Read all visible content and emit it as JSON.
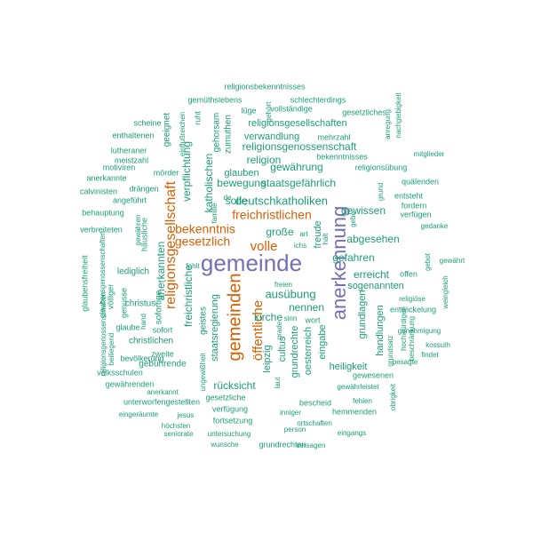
{
  "colors": {
    "teal": "#1b9e77",
    "orange": "#d95f02",
    "purple": "#7570b3"
  },
  "words": [
    {
      "text": "gemeinde",
      "weight": 1.0,
      "color": "purple"
    },
    {
      "text": "anerkennung",
      "weight": 1.0,
      "color": "purple"
    },
    {
      "text": "gemeinden",
      "weight": 0.7,
      "color": "orange"
    },
    {
      "text": "öffentliche",
      "weight": 0.55,
      "color": "orange"
    },
    {
      "text": "religionsgesellschaft",
      "weight": 0.55,
      "color": "orange"
    },
    {
      "text": "freichristlichen",
      "weight": 0.55,
      "color": "orange"
    },
    {
      "text": "bekenntnis",
      "weight": 0.5,
      "color": "orange"
    },
    {
      "text": "gesetzlich",
      "weight": 0.5,
      "color": "orange"
    },
    {
      "text": "volle",
      "weight": 0.5,
      "color": "orange"
    },
    {
      "text": "deutschkatholiken",
      "weight": 0.4,
      "color": "teal"
    },
    {
      "text": "ausübung",
      "weight": 0.4,
      "color": "teal"
    },
    {
      "text": "religionsgenossenschaft",
      "weight": 0.35,
      "color": "teal"
    },
    {
      "text": "staatsgefährlich",
      "weight": 0.3,
      "color": "teal"
    },
    {
      "text": "religionsgesellschaften",
      "weight": 0.3,
      "color": "teal"
    },
    {
      "text": "gewährung",
      "weight": 0.3,
      "color": "teal"
    },
    {
      "text": "bewegung",
      "weight": 0.3,
      "color": "teal"
    },
    {
      "text": "religion",
      "weight": 0.3,
      "color": "teal"
    },
    {
      "text": "gewissen",
      "weight": 0.3,
      "color": "teal"
    },
    {
      "text": "abgesehen",
      "weight": 0.3,
      "color": "teal"
    },
    {
      "text": "gefahren",
      "weight": 0.3,
      "color": "teal"
    },
    {
      "text": "erreicht",
      "weight": 0.3,
      "color": "teal"
    },
    {
      "text": "nennen",
      "weight": 0.3,
      "color": "teal"
    },
    {
      "text": "kirche",
      "weight": 0.3,
      "color": "teal"
    },
    {
      "text": "freichristliche",
      "weight": 0.3,
      "color": "teal"
    },
    {
      "text": "anerkannten",
      "weight": 0.3,
      "color": "teal"
    },
    {
      "text": "katholischen",
      "weight": 0.25,
      "color": "teal"
    },
    {
      "text": "verpflichtung",
      "weight": 0.25,
      "color": "teal"
    },
    {
      "text": "rücksicht",
      "weight": 0.25,
      "color": "teal"
    },
    {
      "text": "solle",
      "weight": 0.25,
      "color": "teal"
    },
    {
      "text": "große",
      "weight": 0.25,
      "color": "teal"
    },
    {
      "text": "glauben",
      "weight": 0.25,
      "color": "teal"
    },
    {
      "text": "verwandlung",
      "weight": 0.25,
      "color": "teal"
    },
    {
      "text": "staatsregierung",
      "weight": 0.25,
      "color": "teal"
    },
    {
      "text": "leipzig",
      "weight": 0.25,
      "color": "teal"
    },
    {
      "text": "cultus",
      "weight": 0.25,
      "color": "teal"
    },
    {
      "text": "grundrechte",
      "weight": 0.25,
      "color": "teal"
    },
    {
      "text": "eingabe",
      "weight": 0.25,
      "color": "teal"
    },
    {
      "text": "oesterreich",
      "weight": 0.25,
      "color": "teal"
    },
    {
      "text": "sogenannten",
      "weight": 0.25,
      "color": "teal"
    },
    {
      "text": "grundlagen",
      "weight": 0.25,
      "color": "teal"
    },
    {
      "text": "handlungen",
      "weight": 0.25,
      "color": "teal"
    },
    {
      "text": "heiligkeit",
      "weight": 0.25,
      "color": "teal"
    },
    {
      "text": "christlichen",
      "weight": 0.25,
      "color": "teal"
    },
    {
      "text": "freude",
      "weight": 0.25,
      "color": "teal"
    },
    {
      "text": "lediglich",
      "weight": 0.25,
      "color": "teal"
    },
    {
      "text": "sofortige",
      "weight": 0.25,
      "color": "teal"
    },
    {
      "text": "geistes",
      "weight": 0.25,
      "color": "teal"
    },
    {
      "text": "geeignet",
      "weight": 0.25,
      "color": "teal"
    },
    {
      "text": "gehorsam",
      "weight": 0.2,
      "color": "teal"
    },
    {
      "text": "zumuthen",
      "weight": 0.2,
      "color": "teal"
    },
    {
      "text": "ruht",
      "weight": 0.15,
      "color": "teal"
    },
    {
      "text": "gemüthslebens",
      "weight": 0.15,
      "color": "teal"
    },
    {
      "text": "religionsbekenntnisses",
      "weight": 0.15,
      "color": "teal"
    },
    {
      "text": "schlechterdings",
      "weight": 0.15,
      "color": "teal"
    },
    {
      "text": "lüge",
      "weight": 0.15,
      "color": "teal"
    },
    {
      "text": "vollständige",
      "weight": 0.15,
      "color": "teal"
    },
    {
      "text": "gehört",
      "weight": 0.15,
      "color": "teal"
    },
    {
      "text": "gesetzliches",
      "weight": 0.15,
      "color": "teal"
    },
    {
      "text": "anregung",
      "weight": 0.15,
      "color": "teal"
    },
    {
      "text": "nachgiebigkeit",
      "weight": 0.15,
      "color": "teal"
    },
    {
      "text": "scheine",
      "weight": 0.15,
      "color": "teal"
    },
    {
      "text": "einflußreichen",
      "weight": 0.15,
      "color": "teal"
    },
    {
      "text": "enthaltenen",
      "weight": 0.15,
      "color": "teal"
    },
    {
      "text": "mehrzahl",
      "weight": 0.15,
      "color": "teal"
    },
    {
      "text": "lutheraner",
      "weight": 0.15,
      "color": "teal"
    },
    {
      "text": "meistzahl",
      "weight": 0.15,
      "color": "teal"
    },
    {
      "text": "bekenntnisses",
      "weight": 0.15,
      "color": "teal"
    },
    {
      "text": "mitglieder",
      "weight": 0.15,
      "color": "teal"
    },
    {
      "text": "religionsübung",
      "weight": 0.15,
      "color": "teal"
    },
    {
      "text": "motiviren",
      "weight": 0.15,
      "color": "teal"
    },
    {
      "text": "mörder",
      "weight": 0.15,
      "color": "teal"
    },
    {
      "text": "grund",
      "weight": 0.15,
      "color": "teal"
    },
    {
      "text": "anerkannte",
      "weight": 0.15,
      "color": "teal"
    },
    {
      "text": "quälenden",
      "weight": 0.15,
      "color": "teal"
    },
    {
      "text": "calvinisten",
      "weight": 0.15,
      "color": "teal"
    },
    {
      "text": "drängen",
      "weight": 0.15,
      "color": "teal"
    },
    {
      "text": "entsteht",
      "weight": 0.15,
      "color": "teal"
    },
    {
      "text": "angeführt",
      "weight": 0.15,
      "color": "teal"
    },
    {
      "text": "de",
      "weight": 0.15,
      "color": "teal"
    },
    {
      "text": "fordern",
      "weight": 0.15,
      "color": "teal"
    },
    {
      "text": "behauptung",
      "weight": 0.15,
      "color": "teal"
    },
    {
      "text": "familie",
      "weight": 0.15,
      "color": "teal"
    },
    {
      "text": "verfügen",
      "weight": 0.15,
      "color": "teal"
    },
    {
      "text": "gewähren",
      "weight": 0.15,
      "color": "teal"
    },
    {
      "text": "häusliche",
      "weight": 0.15,
      "color": "teal"
    },
    {
      "text": "gebe",
      "weight": 0.15,
      "color": "teal"
    },
    {
      "text": "gedanke",
      "weight": 0.15,
      "color": "teal"
    },
    {
      "text": "verbreiteten",
      "weight": 0.15,
      "color": "teal"
    },
    {
      "text": "art",
      "weight": 0.15,
      "color": "teal"
    },
    {
      "text": "hält",
      "weight": 0.15,
      "color": "teal"
    },
    {
      "text": "ichs",
      "weight": 0.15,
      "color": "teal"
    },
    {
      "text": "glaubensgenossenschaften",
      "weight": 0.15,
      "color": "teal"
    },
    {
      "text": "gebot",
      "weight": 0.15,
      "color": "teal"
    },
    {
      "text": "gewährt",
      "weight": 0.15,
      "color": "teal"
    },
    {
      "text": "fehlt",
      "weight": 0.15,
      "color": "teal"
    },
    {
      "text": "offen",
      "weight": 0.15,
      "color": "teal"
    },
    {
      "text": "weingleich",
      "weight": 0.15,
      "color": "teal"
    },
    {
      "text": "glaubensfreiheit",
      "weight": 0.15,
      "color": "teal"
    },
    {
      "text": "freien",
      "weight": 0.15,
      "color": "teal"
    },
    {
      "text": "völliger",
      "weight": 0.15,
      "color": "teal"
    },
    {
      "text": "religiöse",
      "weight": 0.15,
      "color": "teal"
    },
    {
      "text": "genusse",
      "weight": 0.15,
      "color": "teal"
    },
    {
      "text": "christus",
      "weight": 0.2,
      "color": "teal"
    },
    {
      "text": "entwickelung",
      "weight": 0.15,
      "color": "teal"
    },
    {
      "text": "hand",
      "weight": 0.15,
      "color": "teal"
    },
    {
      "text": "sinn",
      "weight": 0.15,
      "color": "teal"
    },
    {
      "text": "wort",
      "weight": 0.15,
      "color": "teal"
    },
    {
      "text": "genehmigung",
      "weight": 0.15,
      "color": "teal"
    },
    {
      "text": "religionsgenossenschaften",
      "weight": 0.15,
      "color": "teal"
    },
    {
      "text": "sofort",
      "weight": 0.2,
      "color": "teal"
    },
    {
      "text": "hochwürdigen",
      "weight": 0.15,
      "color": "teal"
    },
    {
      "text": "beschränkung",
      "weight": 0.15,
      "color": "teal"
    },
    {
      "text": "glaube",
      "weight": 0.15,
      "color": "teal"
    },
    {
      "text": "kossuth",
      "weight": 0.15,
      "color": "teal"
    },
    {
      "text": "beiliegend",
      "weight": 0.15,
      "color": "teal"
    },
    {
      "text": "ungewißheit",
      "weight": 0.15,
      "color": "teal"
    },
    {
      "text": "grade",
      "weight": 0.15,
      "color": "teal"
    },
    {
      "text": "grundsatz",
      "weight": 0.15,
      "color": "teal"
    },
    {
      "text": "findet",
      "weight": 0.15,
      "color": "teal"
    },
    {
      "text": "zweite",
      "weight": 0.15,
      "color": "teal"
    },
    {
      "text": "gebührende",
      "weight": 0.2,
      "color": "teal"
    },
    {
      "text": "laut",
      "weight": 0.15,
      "color": "teal"
    },
    {
      "text": "besagte",
      "weight": 0.15,
      "color": "teal"
    },
    {
      "text": "bevölkerung",
      "weight": 0.15,
      "color": "teal"
    },
    {
      "text": "volksschulen",
      "weight": 0.15,
      "color": "teal"
    },
    {
      "text": "gewesenen",
      "weight": 0.15,
      "color": "teal"
    },
    {
      "text": "gewährenden",
      "weight": 0.15,
      "color": "teal"
    },
    {
      "text": "gesetzliche",
      "weight": 0.2,
      "color": "teal"
    },
    {
      "text": "bescheid",
      "weight": 0.2,
      "color": "teal"
    },
    {
      "text": "fehlen",
      "weight": 0.15,
      "color": "teal"
    },
    {
      "text": "anerkannt",
      "weight": 0.15,
      "color": "teal"
    },
    {
      "text": "gewährleistet",
      "weight": 0.15,
      "color": "teal"
    },
    {
      "text": "obrigkeit",
      "weight": 0.15,
      "color": "teal"
    },
    {
      "text": "unterworfengestellten",
      "weight": 0.15,
      "color": "teal"
    },
    {
      "text": "verfügung",
      "weight": 0.2,
      "color": "teal"
    },
    {
      "text": "inniger",
      "weight": 0.15,
      "color": "teal"
    },
    {
      "text": "hemmenden",
      "weight": 0.15,
      "color": "teal"
    },
    {
      "text": "eingeräumte",
      "weight": 0.15,
      "color": "teal"
    },
    {
      "text": "jesus",
      "weight": 0.15,
      "color": "teal"
    },
    {
      "text": "ortschaften",
      "weight": 0.15,
      "color": "teal"
    },
    {
      "text": "fortsetzung",
      "weight": 0.15,
      "color": "teal"
    },
    {
      "text": "eingangs",
      "weight": 0.15,
      "color": "teal"
    },
    {
      "text": "höchsten",
      "weight": 0.15,
      "color": "teal"
    },
    {
      "text": "seniorate",
      "weight": 0.15,
      "color": "teal"
    },
    {
      "text": "person",
      "weight": 0.15,
      "color": "teal"
    },
    {
      "text": "untersuchung",
      "weight": 0.15,
      "color": "teal"
    },
    {
      "text": "wunsche",
      "weight": 0.15,
      "color": "teal"
    },
    {
      "text": "grundrechten",
      "weight": 0.15,
      "color": "teal"
    },
    {
      "text": "versagen",
      "weight": 0.15,
      "color": "teal"
    }
  ]
}
